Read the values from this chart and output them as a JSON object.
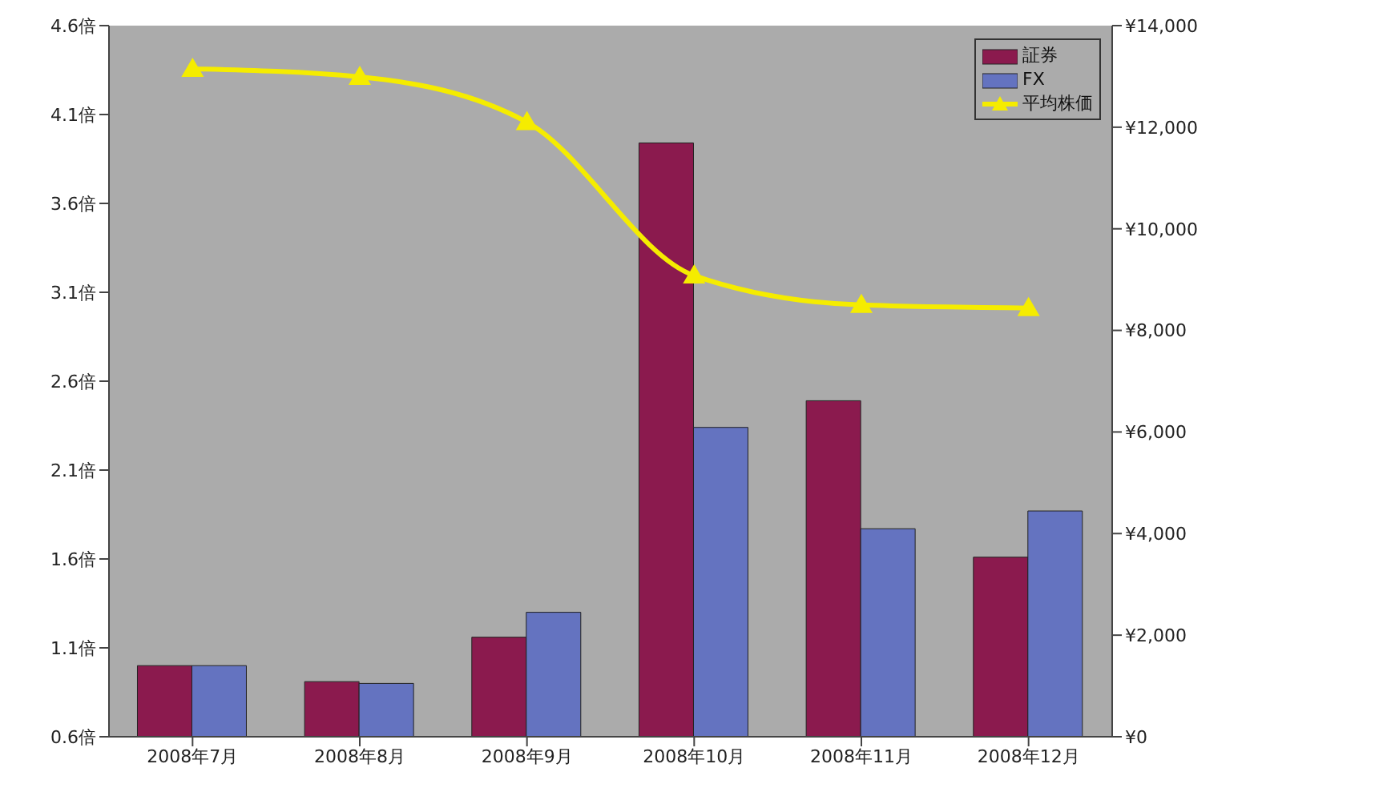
{
  "chart_data": {
    "type": "bar",
    "categories": [
      "2008年7月",
      "2008年8月",
      "2008年9月",
      "2008年10月",
      "2008年11月",
      "2008年12月"
    ],
    "series": [
      {
        "name": "証券",
        "color": "#8b1a4e",
        "values": [
          1.0,
          0.91,
          1.16,
          3.94,
          2.49,
          1.61
        ]
      },
      {
        "name": "FX",
        "color": "#6473c0",
        "values": [
          1.0,
          0.9,
          1.3,
          2.34,
          1.77,
          1.87
        ]
      },
      {
        "name": "平均株価",
        "type": "line",
        "axis": "y2",
        "color": "#f5ec00",
        "marker": "triangle",
        "values": [
          13150,
          12990,
          12100,
          9080,
          8500,
          8440
        ]
      }
    ],
    "ylim": [
      0.6,
      4.6
    ],
    "yticks": [
      {
        "value": 0.6,
        "label": "0.6倍"
      },
      {
        "value": 1.1,
        "label": "1.1倍"
      },
      {
        "value": 1.6,
        "label": "1.6倍"
      },
      {
        "value": 2.1,
        "label": "2.1倍"
      },
      {
        "value": 2.6,
        "label": "2.6倍"
      },
      {
        "value": 3.1,
        "label": "3.1倍"
      },
      {
        "value": 3.6,
        "label": "3.6倍"
      },
      {
        "value": 4.1,
        "label": "4.1倍"
      },
      {
        "value": 4.6,
        "label": "4.6倍"
      }
    ],
    "y2lim": [
      0,
      14000
    ],
    "y2ticks": [
      {
        "value": 0,
        "label": "¥0"
      },
      {
        "value": 2000,
        "label": "¥2,000"
      },
      {
        "value": 4000,
        "label": "¥4,000"
      },
      {
        "value": 6000,
        "label": "¥6,000"
      },
      {
        "value": 8000,
        "label": "¥8,000"
      },
      {
        "value": 10000,
        "label": "¥10,000"
      },
      {
        "value": 12000,
        "label": "¥12,000"
      },
      {
        "value": 14000,
        "label": "¥14,000"
      }
    ],
    "grid": false,
    "legend": "top right"
  }
}
